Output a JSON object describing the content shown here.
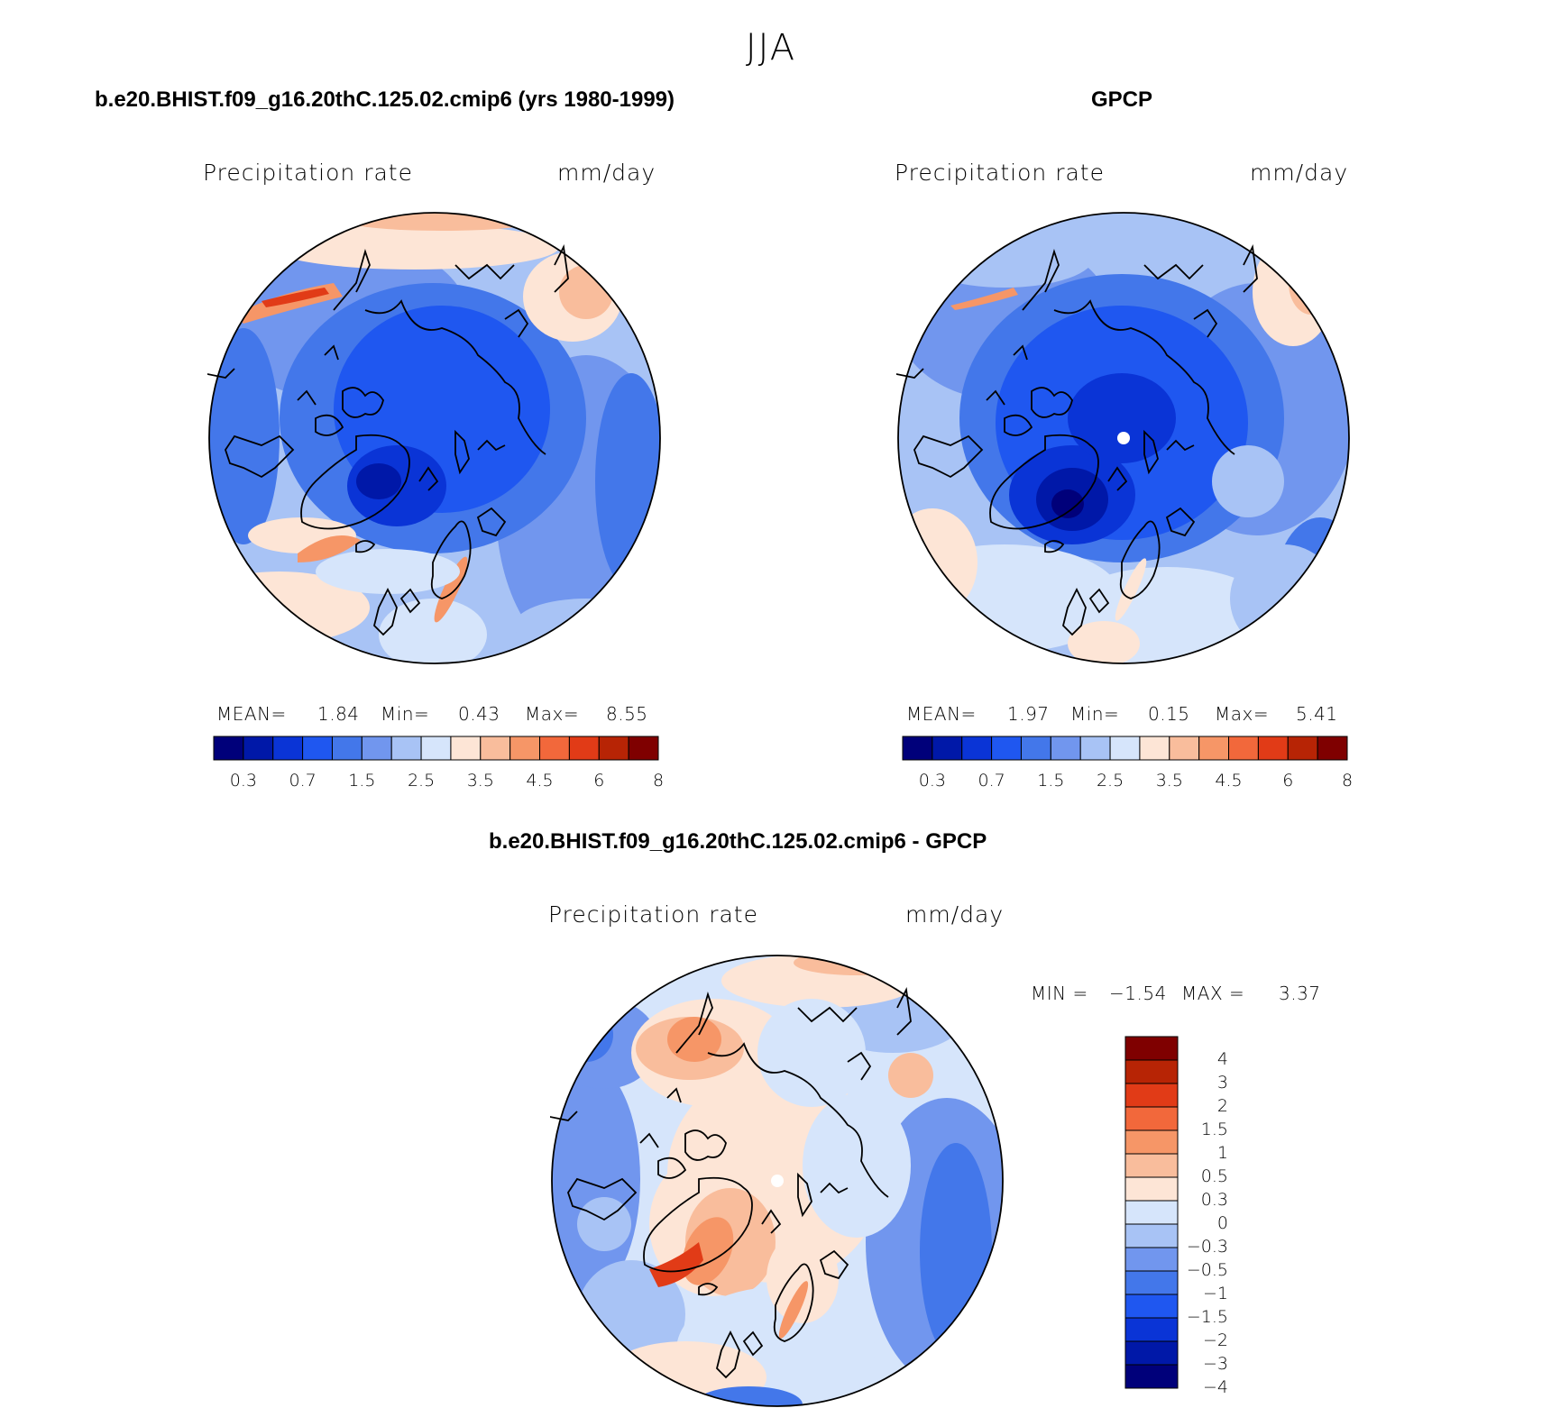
{
  "season": "JJA",
  "panels": [
    {
      "id": "model",
      "title": "b.e20.BHIST.f09_g16.20thC.125.02.cmip6 (yrs 1980-1999)",
      "variable": "Precipitation rate",
      "units": "mm/day",
      "stats": {
        "mean_label": "MEAN=",
        "mean": "1.84",
        "min_label": "Min=",
        "min": "0.43",
        "max_label": "Max=",
        "max": "8.55"
      },
      "colorbar_ticks": [
        "0.3",
        "0.7",
        "1.5",
        "2.5",
        "3.5",
        "4.5",
        "6",
        "8"
      ]
    },
    {
      "id": "obs",
      "title": "GPCP",
      "variable": "Precipitation rate",
      "units": "mm/day",
      "stats": {
        "mean_label": "MEAN=",
        "mean": "1.97",
        "min_label": "Min=",
        "min": "0.15",
        "max_label": "Max=",
        "max": "5.41"
      },
      "colorbar_ticks": [
        "0.3",
        "0.7",
        "1.5",
        "2.5",
        "3.5",
        "4.5",
        "6",
        "8"
      ]
    },
    {
      "id": "diff",
      "title": "b.e20.BHIST.f09_g16.20thC.125.02.cmip6 - GPCP",
      "variable": "Precipitation rate",
      "units": "mm/day",
      "stats": {
        "min_label": "MIN =",
        "min": "−1.54",
        "max_label": "MAX =",
        "max": "3.37"
      },
      "colorbar_ticks": [
        "4",
        "3",
        "2",
        "1.5",
        "1",
        "0.5",
        "0.3",
        "0",
        "−0.3",
        "−0.5",
        "−1",
        "−1.5",
        "−2",
        "−3",
        "−4"
      ]
    }
  ],
  "colorbar_colors": [
    "#00007a",
    "#0018a8",
    "#0a34d6",
    "#1f57f0",
    "#4377ea",
    "#7196ee",
    "#a8c3f5",
    "#d6e5fb",
    "#fde5d6",
    "#f9bd9c",
    "#f69667",
    "#f2683b",
    "#e13b17",
    "#b72405",
    "#7f0000"
  ]
}
